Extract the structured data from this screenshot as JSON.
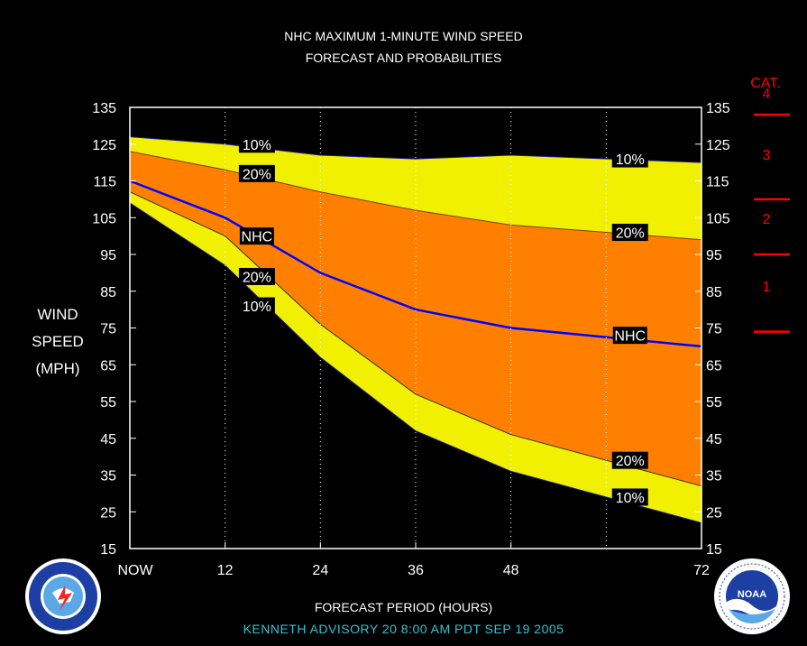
{
  "title_line1": "NHC MAXIMUM 1-MINUTE WIND SPEED",
  "title_line2": "FORECAST AND PROBABILITIES",
  "y_label_lines": [
    "WIND",
    "SPEED",
    "(MPH)"
  ],
  "x_title": "FORECAST PERIOD (HOURS)",
  "advisory": "KENNETH   ADVISORY  20 8:00 AM  PDT  SEP  19  2005",
  "cat_header": "CAT.",
  "colors": {
    "background": "#000000",
    "yellow": "#f0f000",
    "orange": "#ff8000",
    "nhc_line": "#0000ff",
    "category": "#ff0000",
    "advisory_text": "#2ec5d6"
  },
  "logos": {
    "left": "nws-logo-icon",
    "right": "noaa-logo-icon"
  },
  "chart_data": {
    "type": "area",
    "x_ticks": [
      {
        "v": 0,
        "label": "NOW"
      },
      {
        "v": 12,
        "label": "12"
      },
      {
        "v": 24,
        "label": "24"
      },
      {
        "v": 36,
        "label": "36"
      },
      {
        "v": 48,
        "label": "48"
      },
      {
        "v": 72,
        "label": "72"
      }
    ],
    "xlim": [
      0,
      72
    ],
    "ylim": [
      15,
      135
    ],
    "y_ticks": [
      15,
      25,
      35,
      45,
      55,
      65,
      75,
      85,
      95,
      105,
      115,
      125,
      135
    ],
    "grid_x": [
      12,
      24,
      36,
      48,
      60
    ],
    "series": [
      {
        "name": "10%",
        "side": "upper",
        "x": [
          0,
          12,
          24,
          36,
          48,
          72
        ],
        "y": [
          127,
          125,
          122,
          121,
          122,
          120
        ]
      },
      {
        "name": "20%",
        "side": "upper",
        "x": [
          0,
          12,
          24,
          36,
          48,
          72
        ],
        "y": [
          123,
          118,
          112,
          107,
          103,
          99
        ]
      },
      {
        "name": "NHC",
        "side": "center",
        "x": [
          0,
          12,
          24,
          36,
          48,
          72
        ],
        "y": [
          115,
          105,
          90,
          80,
          75,
          70
        ]
      },
      {
        "name": "20%",
        "side": "lower",
        "x": [
          0,
          12,
          24,
          36,
          48,
          72
        ],
        "y": [
          112,
          100,
          76,
          57,
          46,
          32
        ]
      },
      {
        "name": "10%",
        "side": "lower",
        "x": [
          0,
          12,
          24,
          36,
          48,
          72
        ],
        "y": [
          109,
          92,
          67,
          47,
          36,
          22
        ]
      }
    ],
    "data_labels": [
      {
        "text": "10%",
        "x": 16,
        "y": 125
      },
      {
        "text": "20%",
        "x": 16,
        "y": 117
      },
      {
        "text": "NHC",
        "x": 16,
        "y": 100
      },
      {
        "text": "20%",
        "x": 16,
        "y": 89
      },
      {
        "text": "10%",
        "x": 16,
        "y": 81
      },
      {
        "text": "10%",
        "x": 63,
        "y": 121
      },
      {
        "text": "20%",
        "x": 63,
        "y": 101
      },
      {
        "text": "NHC",
        "x": 63,
        "y": 73
      },
      {
        "text": "20%",
        "x": 63,
        "y": 39
      },
      {
        "text": "10%",
        "x": 63,
        "y": 29
      }
    ],
    "categories": [
      {
        "label": "4",
        "boundary": 133
      },
      {
        "label": "3",
        "boundary": 110
      },
      {
        "label": "2",
        "boundary": 95
      },
      {
        "label": "1",
        "boundary": 74
      }
    ]
  }
}
